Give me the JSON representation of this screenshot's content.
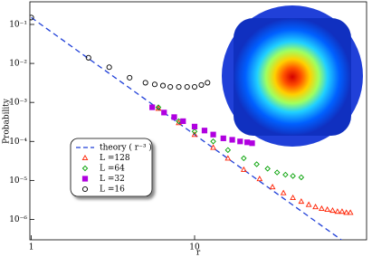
{
  "chart_data": {
    "type": "scatter",
    "x_label": "r",
    "y_label": "Probability",
    "log_x": true,
    "log_y": true,
    "xlim": [
      0.98,
      113
    ],
    "xticks": [
      1,
      10
    ],
    "ylim": [
      3e-07,
      0.38
    ],
    "yticks": [
      {
        "value": 0.1,
        "label": "10⁻¹"
      },
      {
        "value": 0.01,
        "label": "10⁻²"
      },
      {
        "value": 0.001,
        "label": "10⁻³"
      },
      {
        "value": 0.0001,
        "label": "10⁻⁴"
      },
      {
        "value": 1e-05,
        "label": "10⁻⁵"
      },
      {
        "value": 1e-06,
        "label": "10⁻⁶"
      }
    ],
    "legend": "lower left",
    "series": [
      {
        "name": "theory ( r⁻³ )",
        "color": "#1f3fd8",
        "marker": "dashed-line",
        "x": [
          1,
          80
        ],
        "values": [
          0.15,
          2.9e-07
        ]
      },
      {
        "name": "L =128",
        "color": "#ff2000",
        "marker": "triangle",
        "x": [
          6,
          8,
          10,
          13,
          16,
          20,
          25,
          30,
          35,
          40,
          45,
          50,
          55,
          60,
          65,
          70,
          75,
          80,
          85,
          90
        ],
        "values": [
          0.0007,
          0.0003,
          0.00015,
          7e-05,
          3.7e-05,
          1.9e-05,
          1.1e-05,
          6.8e-06,
          4.8e-06,
          3.6e-06,
          2.9e-06,
          2.4e-06,
          2.1e-06,
          1.9e-06,
          1.8e-06,
          1.7e-06,
          1.6e-06,
          1.6e-06,
          1.5e-06,
          1.5e-06
        ]
      },
      {
        "name": "L =64",
        "color": "#00a000",
        "marker": "diamond",
        "x": [
          6,
          8,
          10,
          13,
          16,
          20,
          24,
          28,
          32,
          36,
          40,
          45
        ],
        "values": [
          0.00075,
          0.00033,
          0.00018,
          0.0001,
          6e-05,
          3.7e-05,
          2.6e-05,
          2e-05,
          1.6e-05,
          1.4e-05,
          1.3e-05,
          1.2e-05
        ]
      },
      {
        "name": "L =32",
        "color": "#b000e0",
        "marker": "square",
        "x": [
          5.5,
          6.5,
          7.5,
          8.5,
          10,
          11.5,
          13,
          15,
          17,
          19,
          21,
          22.5
        ],
        "values": [
          0.00075,
          0.00055,
          0.00042,
          0.00033,
          0.00024,
          0.00019,
          0.00015,
          0.00012,
          0.00011,
          0.0001,
          9.5e-05,
          9e-05
        ]
      },
      {
        "name": "L =16",
        "color": "#000000",
        "marker": "circle",
        "x": [
          1,
          2.24,
          3,
          4,
          5,
          5.7,
          6.4,
          7.1,
          8,
          9,
          10,
          11,
          12
        ],
        "values": [
          0.15,
          0.014,
          0.008,
          0.0043,
          0.0032,
          0.0029,
          0.0027,
          0.0025,
          0.0025,
          0.0025,
          0.0025,
          0.0028,
          0.0032
        ]
      }
    ]
  }
}
